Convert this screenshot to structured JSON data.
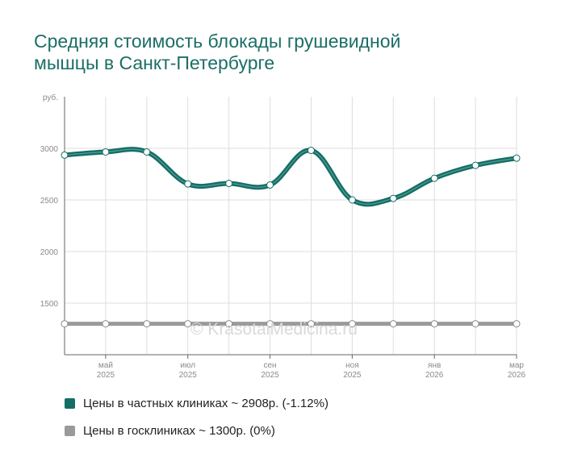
{
  "title": {
    "line1": "Средняя стоимость блокады грушевидной",
    "line2": "мышцы в Санкт-Петербурге"
  },
  "watermark": "© KrasotaiMedicina.ru",
  "colors": {
    "title": "#1c6e66",
    "grid": "#dedede",
    "axis": "#666666",
    "tick_text": "#8a8a8a",
    "private": "#136e66",
    "public": "#9a9a9a"
  },
  "chart_data": {
    "type": "line",
    "title": "Средняя стоимость блокады грушевидной мышцы в Санкт-Петербурге",
    "ylabel": "руб.",
    "ylim": [
      1000,
      3500
    ],
    "yticks": [
      1500,
      2000,
      2500,
      3000
    ],
    "xlim": [
      0,
      11
    ],
    "xticks": [
      {
        "pos": 1,
        "month": "май",
        "year": "2025"
      },
      {
        "pos": 3,
        "month": "июл",
        "year": "2025"
      },
      {
        "pos": 5,
        "month": "сен",
        "year": "2025"
      },
      {
        "pos": 7,
        "month": "ноя",
        "year": "2025"
      },
      {
        "pos": 9,
        "month": "янв",
        "year": "2026"
      },
      {
        "pos": 11,
        "month": "мар",
        "year": "2026"
      }
    ],
    "series": [
      {
        "name": "Цены в частных клиниках",
        "legend": "Цены в частных клиниках ~ 2908р. (-1.12%)",
        "x": [
          0,
          1,
          2,
          3,
          4,
          5,
          6,
          7,
          8,
          9,
          10,
          11
        ],
        "values": [
          2935,
          2965,
          2965,
          2655,
          2660,
          2645,
          2980,
          2500,
          2515,
          2710,
          2835,
          2905
        ]
      },
      {
        "name": "Цены в госклиниках",
        "legend": "Цены в госклиниках ~ 1300р. (0%)",
        "x": [
          0,
          1,
          2,
          3,
          4,
          5,
          6,
          7,
          8,
          9,
          10,
          11
        ],
        "values": [
          1300,
          1300,
          1300,
          1300,
          1300,
          1300,
          1300,
          1300,
          1300,
          1300,
          1300,
          1300
        ]
      }
    ]
  }
}
